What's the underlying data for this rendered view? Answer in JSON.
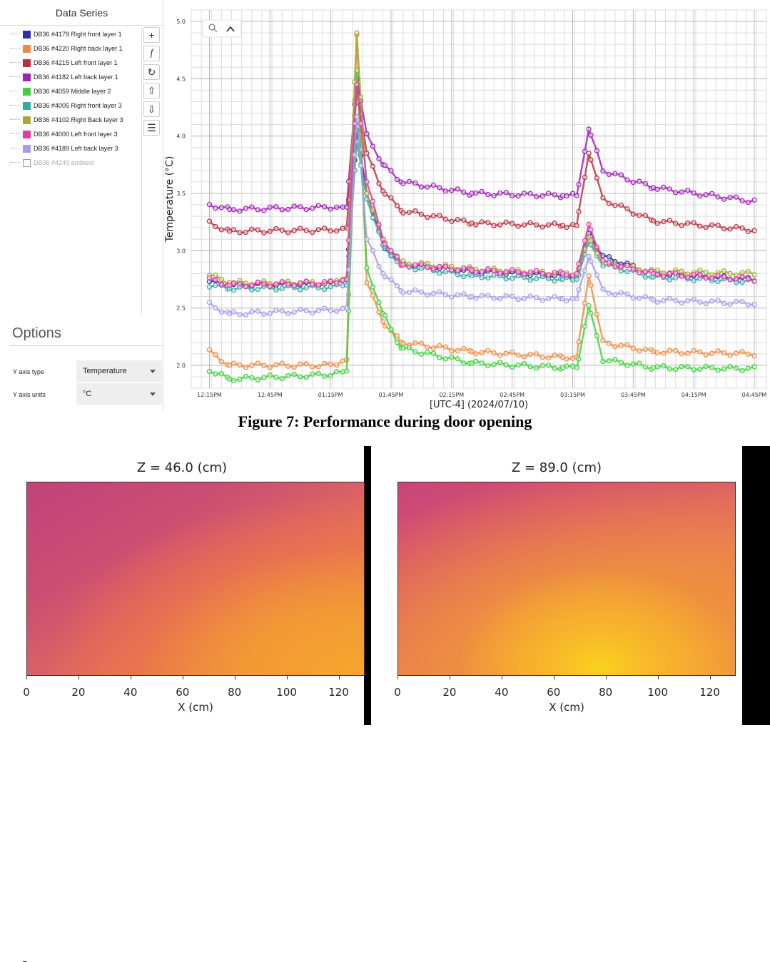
{
  "sidebar": {
    "header": "Data Series",
    "series": [
      {
        "label": "DB36 #4179 Right front layer 1",
        "color": "#2b2fa8",
        "visible": true
      },
      {
        "label": "DB36 #4220 Right back layer 1",
        "color": "#f08a42",
        "visible": true
      },
      {
        "label": "DB36 #4215 Left front layer 1",
        "color": "#b8303e",
        "visible": true
      },
      {
        "label": "DB36 #4182 Left back layer 1",
        "color": "#a020b8",
        "visible": true
      },
      {
        "label": "DB36 #4059 Middle layer 2",
        "color": "#3ed23e",
        "visible": true
      },
      {
        "label": "DB36 #4005 Right front layer 3",
        "color": "#3aa8a8",
        "visible": true
      },
      {
        "label": "DB36 #4102 Right Back layer 3",
        "color": "#a8a832",
        "visible": true
      },
      {
        "label": "DB36 #4000 Left front layer 3",
        "color": "#e23aa8",
        "visible": true
      },
      {
        "label": "DB36 #4189 Left back layer 3",
        "color": "#a89ae8",
        "visible": true
      },
      {
        "label": "DB36 #4249 ambient",
        "color": "#ffffff",
        "visible": false
      }
    ],
    "tools": [
      {
        "name": "add-series-button",
        "glyph": "+"
      },
      {
        "name": "function-button",
        "glyph": "f"
      },
      {
        "name": "refresh-button",
        "glyph": "↻"
      },
      {
        "name": "move-up-button",
        "glyph": "⇧"
      },
      {
        "name": "move-down-button",
        "glyph": "⇩"
      },
      {
        "name": "list-button",
        "glyph": "☰"
      }
    ],
    "options": {
      "title": "Options",
      "y_axis_type_label": "Y axis type",
      "y_axis_type_value": "Temperature",
      "y_axis_units_label": "Y axis units",
      "y_axis_units_value": "°C"
    }
  },
  "chart_data": [
    {
      "type": "line",
      "xlabel": "[UTC-4]  (2024/07/10)",
      "ylabel": "Temperature (°C)",
      "x_ticks": [
        "12:15PM",
        "12:45PM",
        "01:15PM",
        "01:45PM",
        "02:15PM",
        "02:45PM",
        "03:15PM",
        "03:45PM",
        "04:15PM",
        "04:45PM"
      ],
      "y_ticks": [
        "2.0",
        "2.5",
        "3.0",
        "3.5",
        "4.0",
        "4.5",
        "5.0"
      ],
      "ylim": [
        1.8,
        5.1
      ],
      "x_range_minutes": [
        0,
        270
      ],
      "grid": true,
      "series": [
        {
          "name": "DB36 #4179 Right front layer 1",
          "points": [
            [
              0,
              2.73
            ],
            [
              10,
              2.7
            ],
            [
              60,
              2.71
            ],
            [
              68,
              2.75
            ],
            [
              73,
              4.05
            ],
            [
              78,
              3.5
            ],
            [
              86,
              3.05
            ],
            [
              95,
              2.88
            ],
            [
              130,
              2.82
            ],
            [
              175,
              2.78
            ],
            [
              182,
              2.78
            ],
            [
              188,
              3.15
            ],
            [
              195,
              2.95
            ],
            [
              220,
              2.8
            ],
            [
              270,
              2.75
            ]
          ]
        },
        {
          "name": "DB36 #4220 Right back layer 1",
          "points": [
            [
              0,
              2.12
            ],
            [
              10,
              2.0
            ],
            [
              60,
              2.0
            ],
            [
              68,
              2.05
            ],
            [
              73,
              4.88
            ],
            [
              78,
              2.72
            ],
            [
              86,
              2.38
            ],
            [
              95,
              2.2
            ],
            [
              130,
              2.12
            ],
            [
              175,
              2.07
            ],
            [
              182,
              2.07
            ],
            [
              188,
              2.78
            ],
            [
              195,
              2.2
            ],
            [
              220,
              2.12
            ],
            [
              270,
              2.1
            ]
          ]
        },
        {
          "name": "DB36 #4215 Left front layer 1",
          "points": [
            [
              0,
              3.24
            ],
            [
              10,
              3.17
            ],
            [
              60,
              3.18
            ],
            [
              68,
              3.2
            ],
            [
              73,
              4.42
            ],
            [
              78,
              3.85
            ],
            [
              86,
              3.52
            ],
            [
              95,
              3.35
            ],
            [
              130,
              3.24
            ],
            [
              175,
              3.22
            ],
            [
              182,
              3.22
            ],
            [
              188,
              3.85
            ],
            [
              195,
              3.45
            ],
            [
              220,
              3.26
            ],
            [
              270,
              3.18
            ]
          ]
        },
        {
          "name": "DB36 #4182 Left back layer 1",
          "points": [
            [
              0,
              3.4
            ],
            [
              10,
              3.36
            ],
            [
              60,
              3.38
            ],
            [
              68,
              3.38
            ],
            [
              73,
              4.5
            ],
            [
              78,
              4.02
            ],
            [
              86,
              3.75
            ],
            [
              95,
              3.6
            ],
            [
              130,
              3.5
            ],
            [
              175,
              3.48
            ],
            [
              182,
              3.48
            ],
            [
              188,
              4.06
            ],
            [
              195,
              3.7
            ],
            [
              220,
              3.55
            ],
            [
              270,
              3.43
            ]
          ]
        },
        {
          "name": "DB36 #4059 Middle layer 2",
          "points": [
            [
              0,
              1.96
            ],
            [
              10,
              1.88
            ],
            [
              60,
              1.92
            ],
            [
              68,
              1.95
            ],
            [
              73,
              4.57
            ],
            [
              78,
              2.85
            ],
            [
              86,
              2.45
            ],
            [
              95,
              2.15
            ],
            [
              130,
              2.02
            ],
            [
              175,
              1.98
            ],
            [
              182,
              1.98
            ],
            [
              188,
              2.52
            ],
            [
              195,
              2.05
            ],
            [
              220,
              1.98
            ],
            [
              270,
              1.97
            ]
          ]
        },
        {
          "name": "DB36 #4005 Right front layer 3",
          "points": [
            [
              0,
              2.7
            ],
            [
              10,
              2.67
            ],
            [
              60,
              2.68
            ],
            [
              68,
              2.7
            ],
            [
              73,
              3.95
            ],
            [
              78,
              3.45
            ],
            [
              86,
              3.05
            ],
            [
              95,
              2.87
            ],
            [
              130,
              2.78
            ],
            [
              175,
              2.75
            ],
            [
              182,
              2.75
            ],
            [
              188,
              3.08
            ],
            [
              195,
              2.88
            ],
            [
              220,
              2.77
            ],
            [
              270,
              2.73
            ]
          ]
        },
        {
          "name": "DB36 #4102 Right Back layer 3",
          "points": [
            [
              0,
              2.79
            ],
            [
              10,
              2.72
            ],
            [
              60,
              2.72
            ],
            [
              68,
              2.76
            ],
            [
              73,
              4.9
            ],
            [
              78,
              3.5
            ],
            [
              86,
              3.1
            ],
            [
              95,
              2.9
            ],
            [
              130,
              2.84
            ],
            [
              175,
              2.8
            ],
            [
              182,
              2.8
            ],
            [
              188,
              3.12
            ],
            [
              195,
              2.9
            ],
            [
              220,
              2.82
            ],
            [
              270,
              2.8
            ]
          ]
        },
        {
          "name": "DB36 #4000 Left front layer 3",
          "points": [
            [
              0,
              2.75
            ],
            [
              10,
              2.7
            ],
            [
              60,
              2.72
            ],
            [
              68,
              2.75
            ],
            [
              73,
              4.45
            ],
            [
              78,
              3.6
            ],
            [
              86,
              3.1
            ],
            [
              95,
              2.88
            ],
            [
              130,
              2.83
            ],
            [
              175,
              2.8
            ],
            [
              182,
              2.8
            ],
            [
              188,
              3.23
            ],
            [
              195,
              2.9
            ],
            [
              220,
              2.8
            ],
            [
              270,
              2.75
            ]
          ]
        },
        {
          "name": "DB36 #4189 Left back layer 3",
          "points": [
            [
              0,
              2.53
            ],
            [
              10,
              2.45
            ],
            [
              60,
              2.48
            ],
            [
              68,
              2.5
            ],
            [
              73,
              4.17
            ],
            [
              78,
              3.1
            ],
            [
              86,
              2.8
            ],
            [
              95,
              2.65
            ],
            [
              130,
              2.6
            ],
            [
              175,
              2.58
            ],
            [
              182,
              2.58
            ],
            [
              188,
              2.95
            ],
            [
              195,
              2.65
            ],
            [
              220,
              2.57
            ],
            [
              270,
              2.54
            ]
          ]
        }
      ]
    },
    {
      "type": "heatmap",
      "title": "Z = 46.0 (cm)",
      "xlabel": "X (cm)",
      "x_ticks": [
        "0",
        "20",
        "40",
        "60",
        "80",
        "100",
        "120"
      ],
      "xlim": [
        0,
        130
      ]
    },
    {
      "type": "heatmap",
      "title": "Z = 89.0 (cm)",
      "xlabel": "X (cm)",
      "x_ticks": [
        "0",
        "20",
        "40",
        "60",
        "80",
        "100",
        "120"
      ],
      "xlim": [
        0,
        130
      ]
    }
  ],
  "caption": "Figure 7: Performance during door opening"
}
